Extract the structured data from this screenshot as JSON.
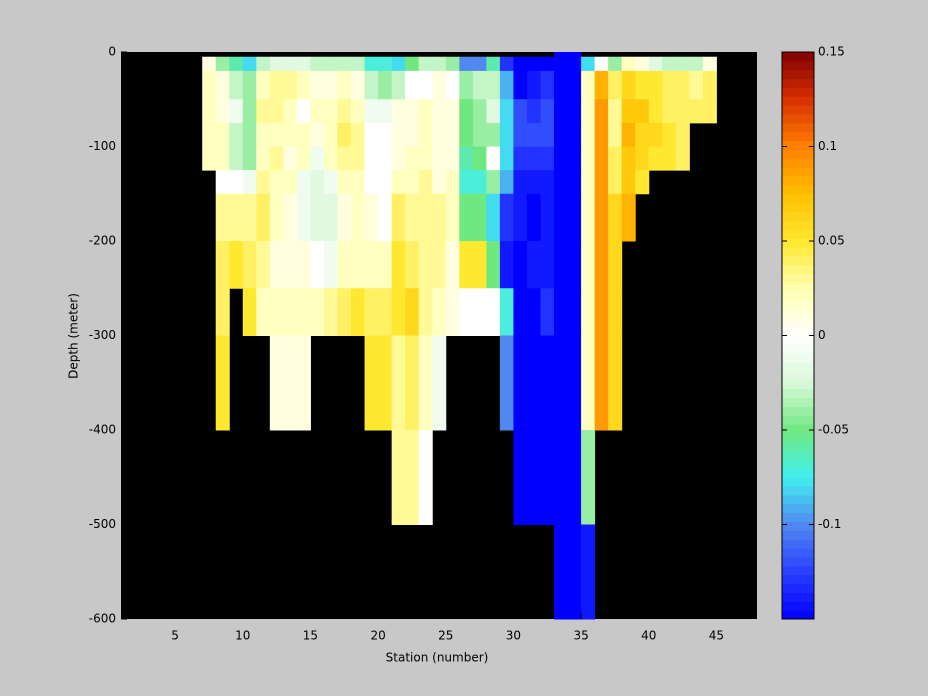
{
  "chart_data": {
    "type": "heatmap",
    "xlabel": "Station (number)",
    "ylabel": "Depth (meter)",
    "xlim": [
      1,
      48
    ],
    "ylim": [
      -600,
      0
    ],
    "xticks": [
      5,
      10,
      15,
      20,
      25,
      30,
      35,
      40,
      45
    ],
    "yticks": [
      0,
      -100,
      -200,
      -300,
      -400,
      -500,
      -600
    ],
    "xbins": [
      7,
      8,
      9,
      10,
      11,
      12,
      13,
      14,
      15,
      16,
      17,
      18,
      19,
      20,
      21,
      22,
      23,
      24,
      25,
      26,
      27,
      28,
      29,
      30,
      31,
      32,
      33,
      34,
      35,
      36,
      37,
      38,
      39,
      40,
      41,
      42,
      43,
      44,
      45
    ],
    "ybins": [
      0,
      -5,
      -20,
      -50,
      -75,
      -100,
      -125,
      -150,
      -200,
      -250,
      -300,
      -400,
      -500,
      -600
    ],
    "z": [
      [
        null,
        0.01,
        0.02,
        0.02,
        0.02,
        0.02,
        null,
        null,
        null,
        null,
        null,
        null,
        null
      ],
      [
        null,
        -0.04,
        0.01,
        0.01,
        0.02,
        0.02,
        0.0,
        0.03,
        0.04,
        0.04,
        0.05,
        null,
        null
      ],
      [
        null,
        -0.06,
        -0.03,
        -0.01,
        -0.03,
        -0.03,
        0.0,
        0.03,
        0.05,
        null,
        null,
        null,
        null
      ],
      [
        null,
        -0.08,
        -0.04,
        -0.04,
        -0.04,
        -0.04,
        -0.01,
        0.03,
        0.04,
        0.05,
        null,
        null,
        null
      ],
      [
        null,
        -0.03,
        0.02,
        0.03,
        0.02,
        0.02,
        0.03,
        0.04,
        0.03,
        0.02,
        null,
        null,
        null
      ],
      [
        null,
        -0.02,
        0.03,
        0.03,
        0.02,
        0.03,
        0.02,
        0.02,
        0.01,
        0.02,
        0.01,
        null,
        null
      ],
      [
        null,
        -0.02,
        0.03,
        0.02,
        0.02,
        0.01,
        0.02,
        0.01,
        0.01,
        0.02,
        0.01,
        null,
        null
      ],
      [
        null,
        -0.02,
        0.02,
        0.0,
        0.02,
        0.02,
        -0.01,
        -0.01,
        0.01,
        0.02,
        0.01,
        null,
        null
      ],
      [
        null,
        -0.03,
        0.01,
        0.02,
        0.01,
        -0.01,
        -0.02,
        -0.02,
        0.0,
        0.02,
        null,
        null,
        null
      ],
      [
        null,
        -0.03,
        0.01,
        0.02,
        0.02,
        0.02,
        -0.01,
        -0.02,
        -0.01,
        0.03,
        null,
        null,
        null
      ],
      [
        null,
        -0.03,
        0.02,
        0.03,
        0.04,
        0.03,
        0.02,
        0.01,
        0.02,
        0.04,
        null,
        null,
        null
      ],
      [
        null,
        -0.03,
        0.01,
        0.02,
        0.03,
        0.03,
        0.02,
        0.02,
        0.02,
        0.05,
        null,
        null,
        null
      ],
      [
        null,
        -0.07,
        -0.03,
        -0.01,
        0.0,
        0.0,
        0.0,
        0.01,
        0.02,
        0.04,
        0.05,
        null,
        null
      ],
      [
        null,
        -0.07,
        -0.04,
        -0.01,
        0.0,
        0.0,
        0.0,
        0.0,
        0.02,
        0.04,
        0.05,
        null,
        null
      ],
      [
        null,
        -0.08,
        -0.03,
        0.01,
        0.01,
        0.01,
        0.02,
        0.04,
        0.05,
        0.05,
        0.03,
        0.03,
        null
      ],
      [
        null,
        -0.05,
        0.0,
        0.01,
        0.01,
        0.02,
        0.02,
        0.03,
        0.04,
        0.06,
        0.04,
        0.03,
        null
      ],
      [
        null,
        -0.03,
        0.0,
        0.02,
        0.02,
        0.02,
        0.03,
        0.03,
        0.03,
        0.03,
        0.02,
        0.0,
        null
      ],
      [
        null,
        -0.03,
        0.01,
        0.01,
        0.01,
        0.01,
        0.01,
        0.03,
        0.03,
        0.02,
        -0.01,
        null,
        null
      ],
      [
        null,
        -0.04,
        0.0,
        0.01,
        0.01,
        0.01,
        0.02,
        0.02,
        0.01,
        0.01,
        null,
        null,
        null
      ],
      [
        null,
        -0.1,
        -0.04,
        -0.05,
        -0.05,
        -0.06,
        -0.07,
        -0.05,
        0.05,
        0.0,
        null,
        null,
        null
      ],
      [
        null,
        -0.1,
        -0.03,
        -0.04,
        -0.04,
        -0.05,
        -0.07,
        -0.05,
        0.05,
        0.0,
        null,
        null,
        null
      ],
      [
        null,
        -0.06,
        -0.03,
        -0.02,
        -0.04,
        0.0,
        -0.04,
        -0.08,
        -0.05,
        0.0,
        null,
        null,
        null
      ],
      [
        null,
        -0.13,
        -0.09,
        -0.08,
        -0.08,
        -0.08,
        -0.09,
        -0.13,
        -0.14,
        -0.07,
        -0.1,
        null,
        null
      ],
      [
        null,
        -0.15,
        -0.15,
        -0.12,
        -0.12,
        -0.13,
        -0.14,
        -0.14,
        -0.15,
        -0.15,
        -0.15,
        -0.15,
        null
      ],
      [
        null,
        -0.15,
        -0.14,
        -0.13,
        -0.12,
        -0.13,
        -0.14,
        -0.15,
        -0.14,
        -0.15,
        -0.15,
        -0.15,
        null
      ],
      [
        null,
        -0.15,
        -0.13,
        -0.12,
        -0.12,
        -0.13,
        -0.14,
        -0.14,
        -0.14,
        -0.13,
        -0.15,
        -0.15,
        null
      ],
      [
        -0.15,
        -0.15,
        -0.15,
        -0.15,
        -0.15,
        -0.15,
        -0.15,
        -0.15,
        -0.15,
        -0.15,
        -0.15,
        -0.15,
        -0.15
      ],
      [
        -0.15,
        -0.15,
        -0.15,
        -0.15,
        -0.15,
        -0.15,
        -0.15,
        -0.15,
        -0.15,
        -0.15,
        -0.15,
        -0.15,
        -0.15
      ],
      [
        null,
        -0.08,
        0.02,
        0.02,
        0.02,
        0.02,
        0.02,
        0.02,
        0.02,
        0.02,
        0.02,
        -0.04,
        -0.14
      ],
      [
        null,
        0.0,
        0.08,
        0.09,
        0.09,
        0.09,
        0.09,
        0.09,
        0.09,
        0.09,
        0.09,
        null,
        null
      ],
      [
        null,
        -0.04,
        0.04,
        0.03,
        0.03,
        0.04,
        0.04,
        0.06,
        0.06,
        0.06,
        0.06,
        null,
        null
      ],
      [
        null,
        0.02,
        0.06,
        0.07,
        0.08,
        0.07,
        0.07,
        0.08,
        null,
        null,
        null,
        null,
        null
      ],
      [
        null,
        0.01,
        0.05,
        0.07,
        0.06,
        0.06,
        0.05,
        null,
        null,
        null,
        null,
        null,
        null
      ],
      [
        null,
        -0.02,
        0.05,
        0.05,
        0.06,
        0.05,
        null,
        null,
        null,
        null,
        null,
        null,
        null
      ],
      [
        null,
        -0.03,
        0.04,
        0.04,
        0.05,
        0.05,
        null,
        null,
        null,
        null,
        null,
        null,
        null
      ],
      [
        null,
        -0.03,
        0.04,
        0.04,
        0.04,
        0.04,
        null,
        null,
        null,
        null,
        null,
        null,
        null
      ],
      [
        null,
        -0.03,
        0.03,
        0.04,
        null,
        null,
        null,
        null,
        null,
        null,
        null,
        null,
        null
      ],
      [
        null,
        0.01,
        0.04,
        0.04,
        null,
        null,
        null,
        null,
        null,
        null,
        null,
        null,
        null
      ]
    ],
    "clim": [
      -0.15,
      0.15
    ],
    "cticks": [
      0.15,
      0.1,
      0.05,
      0,
      -0.05,
      -0.1
    ],
    "colormap": [
      "#0000ff",
      "#2a40ff",
      "#5088f0",
      "#40f0f0",
      "#70e880",
      "#d8f8d8",
      "#ffffff",
      "#ffffb0",
      "#ffe830",
      "#ffc000",
      "#ff8000",
      "#d83000",
      "#800000"
    ],
    "background": "#000000"
  }
}
